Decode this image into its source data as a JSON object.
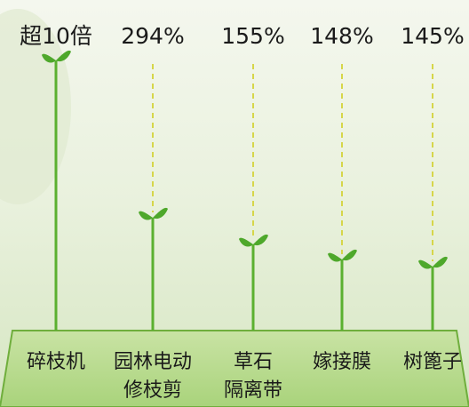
{
  "items": [
    {
      "value_label": "超10倍",
      "name_lines": [
        "碎枝机"
      ]
    },
    {
      "value_label": "294%",
      "name_lines": [
        "园林电动",
        "修枝剪"
      ]
    },
    {
      "value_label": "155%",
      "name_lines": [
        "草石",
        "隔离带"
      ]
    },
    {
      "value_label": "148%",
      "name_lines": [
        "嫁接膜"
      ]
    },
    {
      "value_label": "145%",
      "name_lines": [
        "树篦子"
      ]
    }
  ]
}
